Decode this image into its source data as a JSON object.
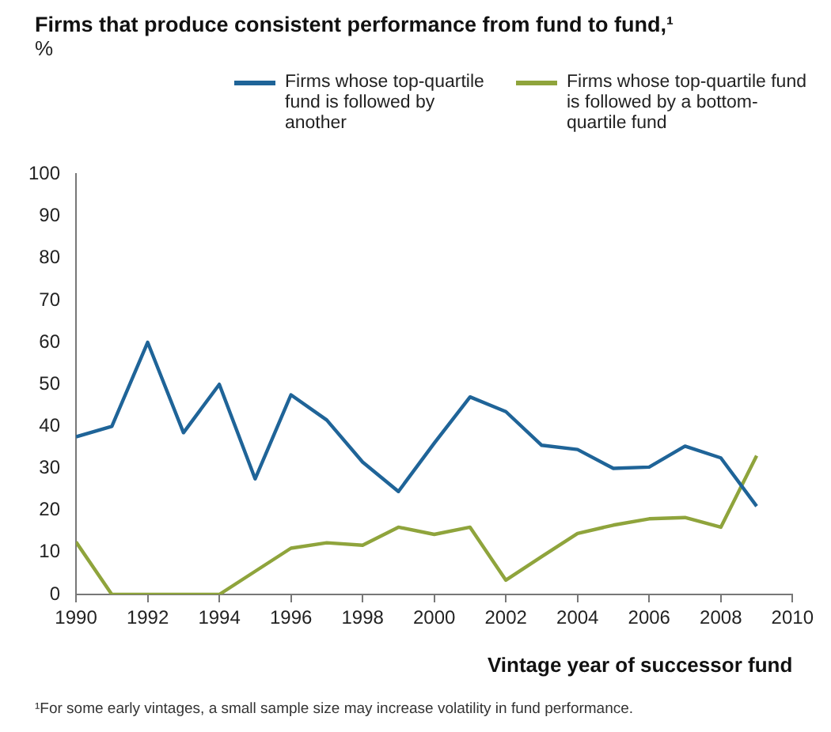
{
  "chart_data": {
    "type": "line",
    "title": "Firms that produce consistent performance from fund to fund,¹",
    "ylabel": "%",
    "xlabel": "Vintage year of successor fund",
    "x": [
      1990,
      1991,
      1992,
      1993,
      1994,
      1995,
      1996,
      1997,
      1998,
      1999,
      2000,
      2001,
      2002,
      2003,
      2004,
      2005,
      2006,
      2007,
      2008,
      2009
    ],
    "series": [
      {
        "name": "Firms whose top-quartile fund is followed by another",
        "color": "#1f6498",
        "values": [
          37.5,
          40,
          60,
          38.5,
          50,
          27.5,
          47.5,
          41.5,
          31.5,
          24.5,
          36,
          47,
          43.5,
          35.5,
          34.5,
          30,
          30.3,
          35.3,
          32.5,
          21
        ]
      },
      {
        "name": "Firms whose top-quartile fund is followed by a bottom-quartile fund",
        "color": "#8fa43c",
        "values": [
          12.5,
          0,
          0,
          0,
          0,
          5.5,
          11,
          12.3,
          11.7,
          16,
          14.3,
          16,
          3.4,
          9,
          14.5,
          16.5,
          18,
          18.3,
          16,
          33
        ]
      }
    ],
    "xlim": [
      1990,
      2010
    ],
    "xticks": [
      1990,
      1992,
      1994,
      1996,
      1998,
      2000,
      2002,
      2004,
      2006,
      2008,
      2010
    ],
    "ylim": [
      0,
      100
    ],
    "yticks": [
      0,
      10,
      20,
      30,
      40,
      50,
      60,
      70,
      80,
      90,
      100
    ],
    "grid": false,
    "legend": "top",
    "marker": "none",
    "line_style": "solid",
    "annotations": [
      "¹For some early vintages, a small sample size may increase volatility in fund performance."
    ]
  }
}
